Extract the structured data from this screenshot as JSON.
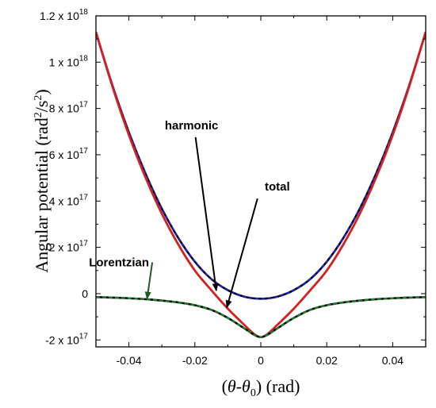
{
  "chart_data": {
    "type": "line",
    "title": "",
    "xlabel_parts": {
      "open": "(",
      "theta": "θ",
      "dash": "-",
      "theta0": "θ",
      "zero": "0",
      "close": ")",
      "unit": " (rad)"
    },
    "ylabel_parts": {
      "text": "Angular potential (rad",
      "sup1": "2",
      "mid": "/s",
      "sup2": "2",
      "close": ")"
    },
    "xlim": [
      -0.05,
      0.05
    ],
    "ylim": [
      -2.3e+17,
      1.2e+18
    ],
    "x_ticks": [
      {
        "value": -0.04,
        "label": "-0.04"
      },
      {
        "value": -0.02,
        "label": "-0.02"
      },
      {
        "value": 0,
        "label": "0"
      },
      {
        "value": 0.02,
        "label": "0.02"
      },
      {
        "value": 0.04,
        "label": "0.04"
      }
    ],
    "y_ticks": [
      {
        "value": -2e+17,
        "mant": "-2 x 10",
        "exp": "17"
      },
      {
        "value": 0,
        "mant": "0",
        "exp": ""
      },
      {
        "value": 2e+17,
        "mant": "2 x 10",
        "exp": "17"
      },
      {
        "value": 4e+17,
        "mant": "4 x 10",
        "exp": "17"
      },
      {
        "value": 6e+17,
        "mant": "6 x 10",
        "exp": "17"
      },
      {
        "value": 8e+17,
        "mant": "8 x 10",
        "exp": "17"
      },
      {
        "value": 1e+18,
        "mant": "1 x 10",
        "exp": "18"
      },
      {
        "value": 1.2e+18,
        "mant": "1.2 x 10",
        "exp": "18"
      }
    ],
    "grid": false,
    "legend": "none",
    "series": [
      {
        "name": "harmonic",
        "color": "#1e22b4",
        "style": "dashed",
        "x": [
          -0.05,
          -0.045,
          -0.04,
          -0.035,
          -0.03,
          -0.025,
          -0.02,
          -0.015,
          -0.01,
          -0.005,
          0,
          0.005,
          0.01,
          0.015,
          0.02,
          0.025,
          0.03,
          0.035,
          0.04,
          0.045,
          0.05
        ],
        "y": [
          1.13e+18,
          9e+17,
          6.97e+17,
          5.2e+17,
          3.67e+17,
          2.4e+17,
          1.38e+17,
          6.3e+16,
          1.5e+16,
          -1.3e+16,
          -2.2e+16,
          -1.3e+16,
          1.5e+16,
          6.3e+16,
          1.38e+17,
          2.4e+17,
          3.67e+17,
          5.2e+17,
          6.97e+17,
          9e+17,
          1.13e+18
        ]
      },
      {
        "name": "total",
        "color": "#d42020",
        "style": "solid",
        "x": [
          -0.05,
          -0.045,
          -0.04,
          -0.035,
          -0.03,
          -0.025,
          -0.02,
          -0.015,
          -0.01,
          -0.005,
          -0.002,
          0,
          0.002,
          0.005,
          0.01,
          0.015,
          0.02,
          0.025,
          0.03,
          0.035,
          0.04,
          0.045,
          0.05
        ],
        "y": [
          1.13e+18,
          8.95e+17,
          6.85e+17,
          5.03e+17,
          3.45e+17,
          2.12e+17,
          1e+17,
          1.5e+16,
          -6.5e+16,
          -1.35e+17,
          -1.75e+17,
          -1.88e+17,
          -1.75e+17,
          -1.35e+17,
          -6.5e+16,
          1.5e+16,
          1e+17,
          2.12e+17,
          3.45e+17,
          5.03e+17,
          6.85e+17,
          8.95e+17,
          1.13e+18
        ]
      },
      {
        "name": "Lorentzian",
        "color": "#1f7a2a",
        "style": "dashed",
        "x": [
          -0.05,
          -0.045,
          -0.04,
          -0.035,
          -0.03,
          -0.025,
          -0.02,
          -0.015,
          -0.01,
          -0.005,
          -0.002,
          0,
          0.002,
          0.005,
          0.01,
          0.015,
          0.02,
          0.025,
          0.03,
          0.035,
          0.04,
          0.045,
          0.05
        ],
        "y": [
          -1.5e+16,
          -1.7e+16,
          -2e+16,
          -2.4e+16,
          -3e+16,
          -3.8e+16,
          -5e+16,
          -7e+16,
          -1.05e+17,
          -1.5e+17,
          -1.78e+17,
          -1.88e+17,
          -1.78e+17,
          -1.5e+17,
          -1.05e+17,
          -7e+16,
          -5e+16,
          -3.8e+16,
          -3e+16,
          -2.4e+16,
          -2e+16,
          -1.7e+16,
          -1.5e+16
        ]
      }
    ],
    "annotations": [
      {
        "text": "harmonic",
        "x": -0.021,
        "y": 7.1e+17,
        "arrow_to": [
          -0.0135,
          1.3e+16
        ],
        "color": "#000000"
      },
      {
        "text": "total",
        "x": 0.005,
        "y": 4.45e+17,
        "arrow_to": [
          -0.0103,
          -6e+16
        ],
        "color": "#000000"
      },
      {
        "text": "Lorentzian",
        "x": -0.043,
        "y": 1.18e+17,
        "arrow_to": [
          -0.0345,
          -2.3e+16
        ],
        "color": "#1f5a20"
      }
    ]
  }
}
